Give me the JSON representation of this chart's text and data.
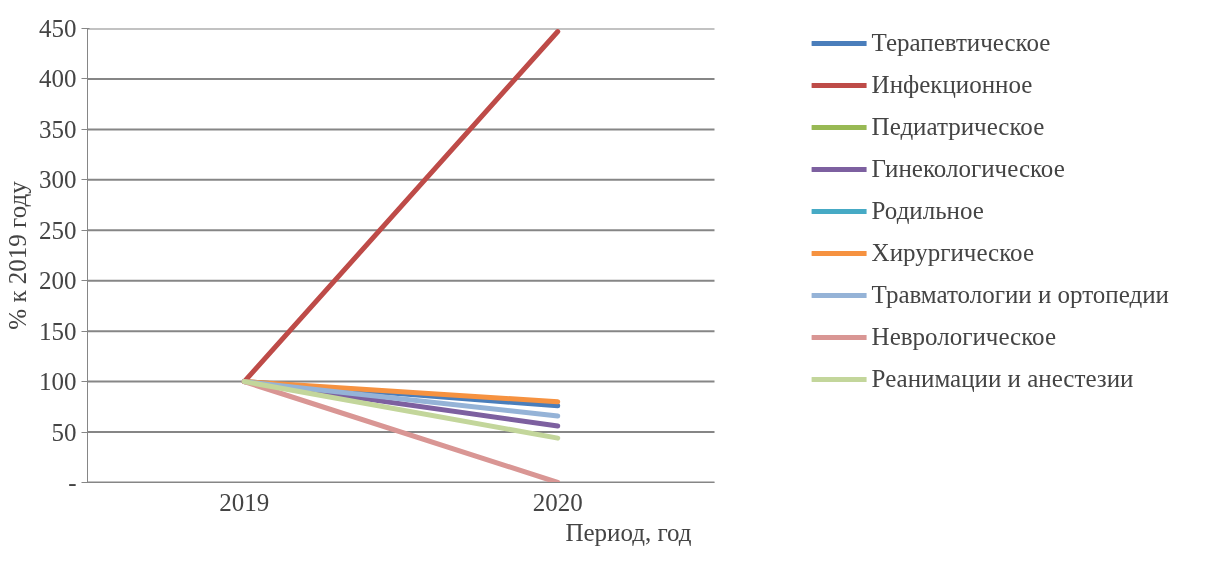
{
  "chart_data": {
    "type": "line",
    "xlabel": "Период, год",
    "ylabel": "% к 2019 году",
    "categories": [
      "2019",
      "2020"
    ],
    "ylim": [
      0,
      450
    ],
    "yticks": [
      {
        "value": 0,
        "label": "-"
      },
      50,
      100,
      150,
      200,
      250,
      300,
      350,
      400,
      450
    ],
    "grid": "y",
    "legend": "right",
    "marker": "none",
    "line_style": "solid",
    "series": [
      {
        "name": "Терапевтическое",
        "color": "#4a7ebb",
        "values": [
          100,
          76
        ]
      },
      {
        "name": "Инфекционное",
        "color": "#be4b48",
        "values": [
          100,
          447
        ]
      },
      {
        "name": "Педиатрическое",
        "color": "#98b954",
        "values": [
          null,
          null
        ]
      },
      {
        "name": "Гинекологическое",
        "color": "#7d60a0",
        "values": [
          100,
          56
        ]
      },
      {
        "name": "Родильное",
        "color": "#46aac5",
        "values": [
          null,
          null
        ]
      },
      {
        "name": "Хирургическое",
        "color": "#f69240",
        "values": [
          100,
          80
        ]
      },
      {
        "name": "Травматологии и ортопедии",
        "color": "#95b3d7",
        "values": [
          100,
          66
        ]
      },
      {
        "name": "Неврологическое",
        "color": "#d99694",
        "values": [
          100,
          0
        ]
      },
      {
        "name": "Реанимации и анестезии",
        "color": "#c3d69b",
        "values": [
          100,
          44
        ]
      }
    ]
  }
}
